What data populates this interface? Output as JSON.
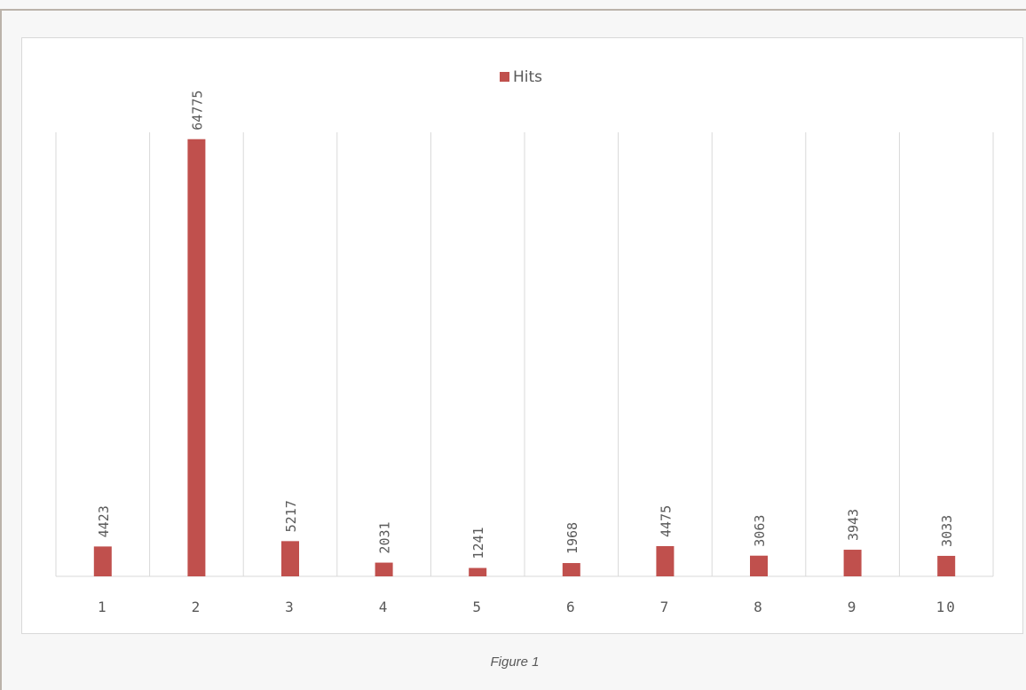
{
  "figure": {
    "caption": "Figure 1"
  },
  "colors": {
    "bar": "#c0504d",
    "grid": "#d9d9d9",
    "text": "#595959"
  },
  "chart_data": {
    "type": "bar",
    "title": "",
    "xlabel": "",
    "ylabel": "",
    "categories": [
      "1",
      "2",
      "3",
      "4",
      "5",
      "6",
      "7",
      "8",
      "9",
      "10"
    ],
    "series": [
      {
        "name": "Hits",
        "values": [
          4423,
          64775,
          5217,
          2031,
          1241,
          1968,
          4475,
          3063,
          3943,
          3033
        ]
      }
    ],
    "ylim": [
      0,
      70000
    ],
    "legend": "top-center",
    "grid": "vertical category separators",
    "data_labels": "rotated vertical above bars"
  }
}
